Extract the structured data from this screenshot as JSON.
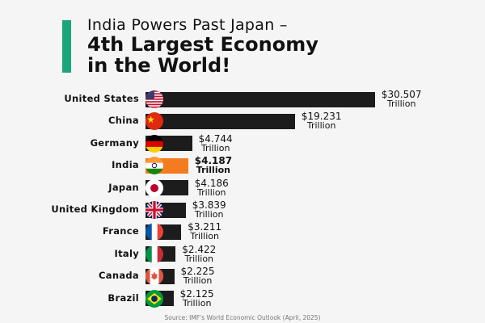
{
  "chart_data": {
    "type": "bar",
    "orientation": "horizontal",
    "title_line1": "India Powers Past Japan –",
    "title_line2": "4th Largest Economy",
    "title_line3": "in the World!",
    "unit": "Trillion",
    "categories": [
      "United States",
      "China",
      "Germany",
      "India",
      "Japan",
      "United Kingdom",
      "France",
      "Italy",
      "Canada",
      "Brazil"
    ],
    "values": [
      30.507,
      19.231,
      4.744,
      4.187,
      4.186,
      3.839,
      3.211,
      2.422,
      2.225,
      2.125
    ],
    "value_labels": [
      "$30.507",
      "$19.231",
      "$4.744",
      "$4.187",
      "$4.186",
      "$3.839",
      "$3.211",
      "$2.422",
      "$2.225",
      "$2.125"
    ],
    "highlight": "India",
    "colors": {
      "bar": "#1c1c1c",
      "highlight": "#f47b20",
      "accent": "#1aa57a",
      "background": "#f5f5f5"
    },
    "source": "Source: IMF's World Economic Outlook (April, 2025)"
  }
}
